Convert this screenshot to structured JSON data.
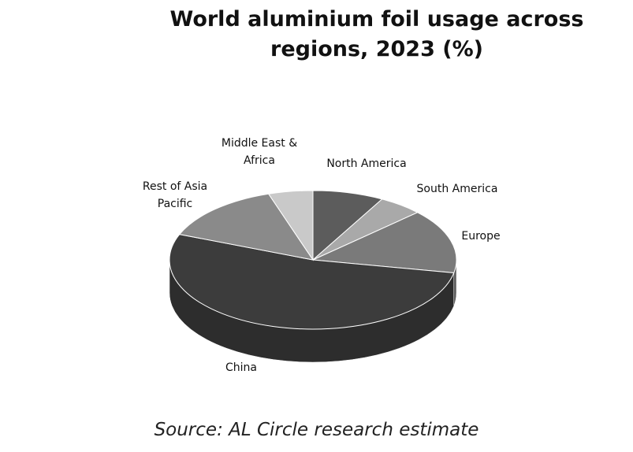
{
  "chart_data": {
    "type": "pie",
    "title": "World aluminium foil usage across regions, 2023 (%)",
    "source": "Source: AL Circle research estimate",
    "categories": [
      "North America",
      "South America",
      "Europe",
      "China",
      "Rest of Asia Pacific",
      "Middle East & Africa"
    ],
    "values": [
      8,
      5,
      15,
      53,
      14,
      5
    ],
    "colors": [
      "#5c5c5c",
      "#a9a9a9",
      "#7a7a7a",
      "#3c3c3c",
      "#8a8a8a",
      "#c9c9c9"
    ]
  }
}
